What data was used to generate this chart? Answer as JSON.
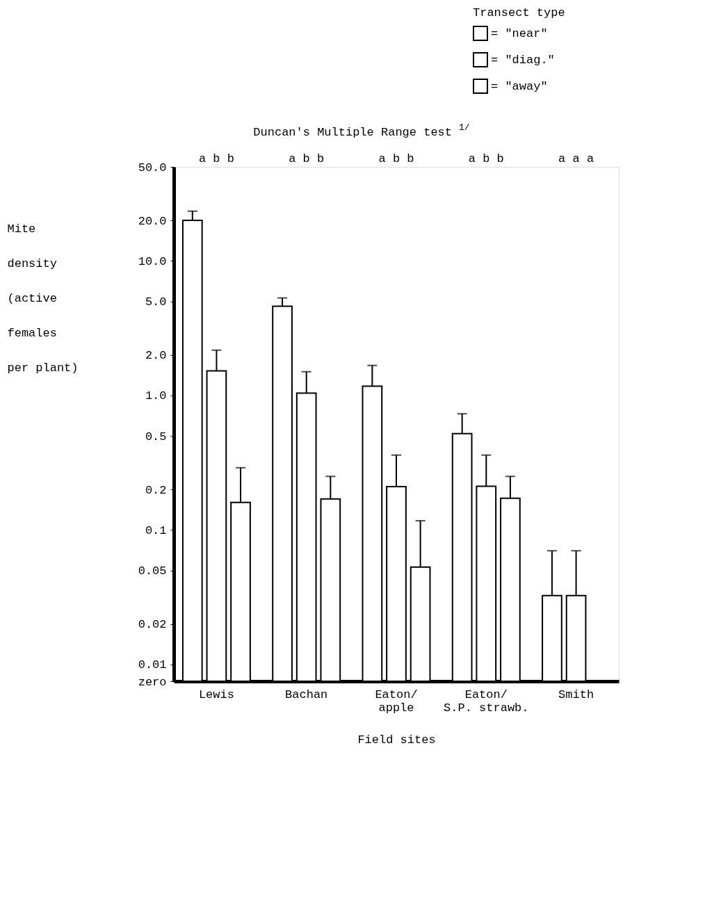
{
  "chart_data": {
    "type": "bar",
    "categories": [
      "Lewis",
      "Bachan",
      "Eaton/\napple",
      "Eaton/\nS.P. strawb.",
      "Smith"
    ],
    "series": [
      {
        "name": "= \"near\"",
        "color": "#ffffff",
        "values": [
          20,
          4.6,
          1.17,
          0.52,
          0.0325
        ],
        "errors": [
          [
            20,
            23.4
          ],
          [
            4.6,
            5.3
          ],
          [
            1.17,
            1.67
          ],
          [
            0.52,
            0.73
          ],
          [
            0.0325,
            0.07
          ]
        ]
      },
      {
        "name": "= \"diag.\"",
        "color": "#ffffff",
        "values": [
          1.52,
          1.04,
          0.21,
          0.211,
          0.0325
        ],
        "errors": [
          [
            1.52,
            2.17
          ],
          [
            1.04,
            1.5
          ],
          [
            0.21,
            0.36
          ],
          [
            0.211,
            0.36
          ],
          [
            0.0325,
            0.07
          ]
        ]
      },
      {
        "name": "= \"away\"",
        "color": "#ffffff",
        "values": [
          0.16,
          0.17,
          0.053,
          0.172,
          null
        ],
        "errors": [
          [
            0.16,
            0.29
          ],
          [
            0.17,
            0.25
          ],
          [
            0.053,
            0.117
          ],
          [
            0.172,
            0.25
          ],
          null
        ]
      }
    ],
    "xlabel": "Field sites",
    "ylabel": "Mite\ndensity\n(active\nfemales\nper plant)",
    "legend_title": "Transect type",
    "legend": "top right",
    "log": true,
    "ylim": [
      0.0075,
      50
    ],
    "yticks": [
      {
        "value": 50,
        "label": "50.0"
      },
      {
        "value": 20,
        "label": "20.0"
      },
      {
        "value": 10,
        "label": "10.0"
      },
      {
        "value": 5,
        "label": "5.0"
      },
      {
        "value": 2,
        "label": "2.0"
      },
      {
        "value": 1,
        "label": "1.0"
      },
      {
        "value": 0.5,
        "label": "0.5"
      },
      {
        "value": 0.2,
        "label": "0.2"
      },
      {
        "value": 0.1,
        "label": "0.1"
      },
      {
        "value": 0.05,
        "label": "0.05"
      },
      {
        "value": 0.02,
        "label": "0.02"
      },
      {
        "value": 0.01,
        "label": "0.01"
      },
      {
        "value": 0.0075,
        "label": "zero"
      }
    ],
    "grid": false,
    "annotations": [
      "Duncan's Multiple Range test $^{1/}$",
      "a   b   b",
      "a   b   b",
      "a   b   b",
      "a   b   b",
      "a   a   a"
    ]
  }
}
